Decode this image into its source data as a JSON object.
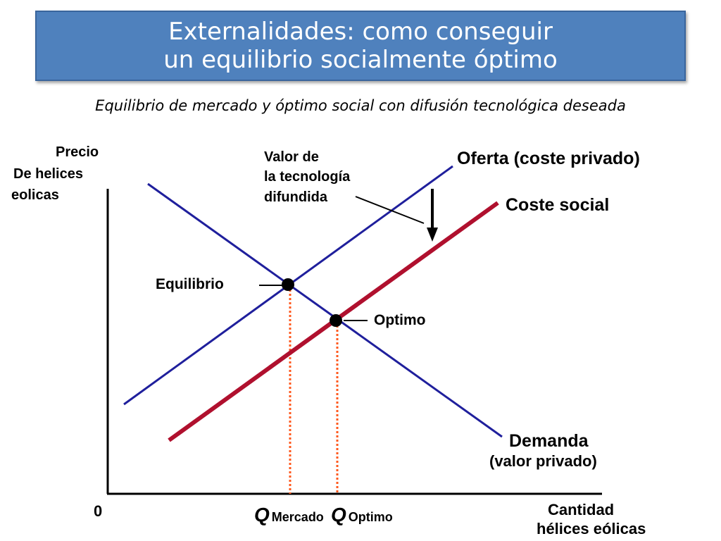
{
  "slide": {
    "title_line1": "Externalidades: como conseguir",
    "title_line2": "un equilibrio socialmente óptimo",
    "subtitle": "Equilibrio de mercado y óptimo social con difusión tecnológica deseada"
  },
  "diagram": {
    "y_axis_label": [
      "Precio",
      "De helices",
      "eolicas"
    ],
    "x_axis_label": [
      "Cantidad",
      "hélices eólicas"
    ],
    "origin_label": "0",
    "supply_label": "Oferta (coste privado)",
    "social_cost_label": "Coste social",
    "demand_label": "Demanda",
    "demand_sublabel": "(valor privado)",
    "tech_value_label": [
      "Valor de",
      "la tecnología",
      "difundida"
    ],
    "equilibrium_label": "Equilibrio",
    "optimum_label": "Optimo",
    "q_market": {
      "q": "Q",
      "sub": "Mercado"
    },
    "q_optimum": {
      "q": "Q",
      "sub": "Optimo"
    },
    "colors": {
      "supply_line": "#1f1f9c",
      "demand_line": "#1f1f9c",
      "social_cost_line": "#b0102e",
      "guide_lines": "#ff5a1f",
      "title_background": "#4f81bd"
    }
  }
}
